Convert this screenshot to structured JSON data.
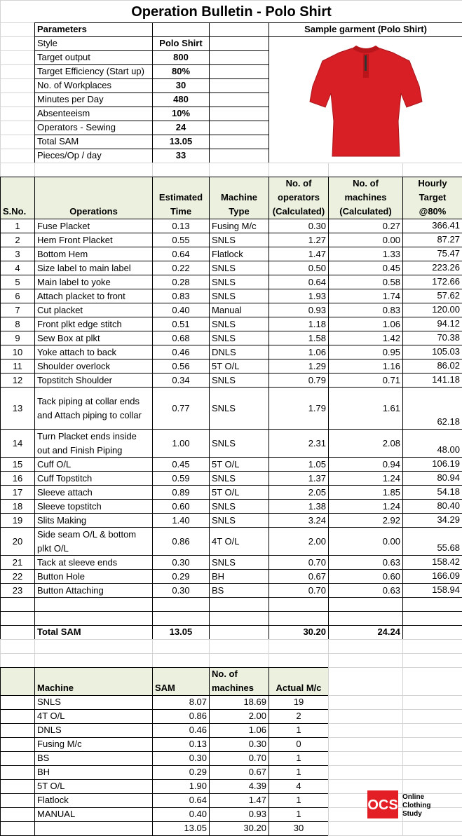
{
  "title": "Operation Bulletin - Polo Shirt",
  "parameters": {
    "header": "Parameters",
    "sample_header": "Sample garment (Polo Shirt)",
    "rows": [
      [
        "Style",
        "Polo Shirt"
      ],
      [
        "Target output",
        "800"
      ],
      [
        "Target Efficiency (Start up)",
        "80%"
      ],
      [
        "No. of Workplaces",
        "30"
      ],
      [
        "Minutes per Day",
        "480"
      ],
      [
        "Absenteeism",
        "10%"
      ],
      [
        "Operators - Sewing",
        "24"
      ],
      [
        "Total SAM",
        "13.05"
      ],
      [
        "Pieces/Op / day",
        "33"
      ]
    ]
  },
  "operations": {
    "headers": [
      "S.No.",
      "Operations",
      "Estimated Time",
      "Machine Type",
      "No. of operators (Calculated)",
      "No. of machines (Calculated)",
      "Hourly Target @80%"
    ],
    "rows": [
      [
        "1",
        "Fuse Placket",
        "0.13",
        "Fusing M/c",
        "0.30",
        "0.27",
        "366.41"
      ],
      [
        "2",
        "Hem Front Placket",
        "0.55",
        "SNLS",
        "1.27",
        "0.00",
        "87.27"
      ],
      [
        "3",
        "Bottom Hem",
        "0.64",
        "Flatlock",
        "1.47",
        "1.33",
        "75.47"
      ],
      [
        "4",
        "Size label to main label",
        "0.22",
        "SNLS",
        "0.50",
        "0.45",
        "223.26"
      ],
      [
        "5",
        "Main label to yoke",
        "0.28",
        "SNLS",
        "0.64",
        "0.58",
        "172.66"
      ],
      [
        "6",
        "Attach placket to front",
        "0.83",
        "SNLS",
        "1.93",
        "1.74",
        "57.62"
      ],
      [
        "7",
        "Cut placket",
        "0.40",
        "Manual",
        "0.93",
        "0.83",
        "120.00"
      ],
      [
        "8",
        "Front plkt edge stitch",
        "0.51",
        "SNLS",
        "1.18",
        "1.06",
        "94.12"
      ],
      [
        "9",
        "Sew Box at plkt",
        "0.68",
        "SNLS",
        "1.58",
        "1.42",
        "70.38"
      ],
      [
        "10",
        "Yoke attach to back",
        "0.46",
        "DNLS",
        "1.06",
        "0.95",
        "105.03"
      ],
      [
        "11",
        "Shoulder overlock",
        "0.56",
        "5T O/L",
        "1.29",
        "1.16",
        "86.02"
      ],
      [
        "12",
        "Topstitch Shoulder",
        "0.34",
        "SNLS",
        "0.79",
        "0.71",
        "141.18"
      ],
      [
        "13",
        "Tack piping at collar ends and Attach piping to collar",
        "0.77",
        "SNLS",
        "1.79",
        "1.61",
        "62.18"
      ],
      [
        "14",
        "Turn Placket ends inside out and Finish Piping",
        "1.00",
        "SNLS",
        "2.31",
        "2.08",
        "48.00"
      ],
      [
        "15",
        "Cuff O/L",
        "0.45",
        "5T O/L",
        "1.05",
        "0.94",
        "106.19"
      ],
      [
        "16",
        "Cuff Topstitch",
        "0.59",
        "SNLS",
        "1.37",
        "1.24",
        "80.94"
      ],
      [
        "17",
        "Sleeve attach",
        "0.89",
        "5T O/L",
        "2.05",
        "1.85",
        "54.18"
      ],
      [
        "18",
        "Sleeve topstitch",
        "0.60",
        "SNLS",
        "1.38",
        "1.24",
        "80.40"
      ],
      [
        "19",
        "Slits Making",
        "1.40",
        "SNLS",
        "3.24",
        "2.92",
        "34.29"
      ],
      [
        "20",
        "Side seam O/L & bottom plkt O/L",
        "0.86",
        "4T O/L",
        "2.00",
        "0.00",
        "55.68"
      ],
      [
        "21",
        "Tack at sleeve ends",
        "0.30",
        "SNLS",
        "0.70",
        "0.63",
        "158.42"
      ],
      [
        "22",
        "Button Hole",
        "0.29",
        "BH",
        "0.67",
        "0.60",
        "166.09"
      ],
      [
        "23",
        "Button Attaching",
        "0.30",
        "BS",
        "0.70",
        "0.63",
        "158.94"
      ]
    ],
    "total": {
      "label": "Total SAM",
      "time": "13.05",
      "operators": "30.20",
      "machines": "24.24"
    }
  },
  "machines": {
    "headers": [
      "Machine",
      "SAM",
      "No. of machines",
      "Actual M/c"
    ],
    "rows": [
      [
        "SNLS",
        "8.07",
        "18.69",
        "19"
      ],
      [
        "4T O/L",
        "0.86",
        "2.00",
        "2"
      ],
      [
        "DNLS",
        "0.46",
        "1.06",
        "1"
      ],
      [
        "Fusing M/c",
        "0.13",
        "0.30",
        "0"
      ],
      [
        "BS",
        "0.30",
        "0.70",
        "1"
      ],
      [
        "BH",
        "0.29",
        "0.67",
        "1"
      ],
      [
        "5T O/L",
        "1.90",
        "4.39",
        "4"
      ],
      [
        "Flatlock",
        "0.64",
        "1.47",
        "1"
      ],
      [
        "MANUAL",
        "0.40",
        "0.93",
        "1"
      ]
    ],
    "total": [
      "13.05",
      "30.20",
      "30"
    ]
  },
  "logo": {
    "mark": "OCS",
    "lines": [
      "Online",
      "Clothing",
      "Study"
    ]
  }
}
